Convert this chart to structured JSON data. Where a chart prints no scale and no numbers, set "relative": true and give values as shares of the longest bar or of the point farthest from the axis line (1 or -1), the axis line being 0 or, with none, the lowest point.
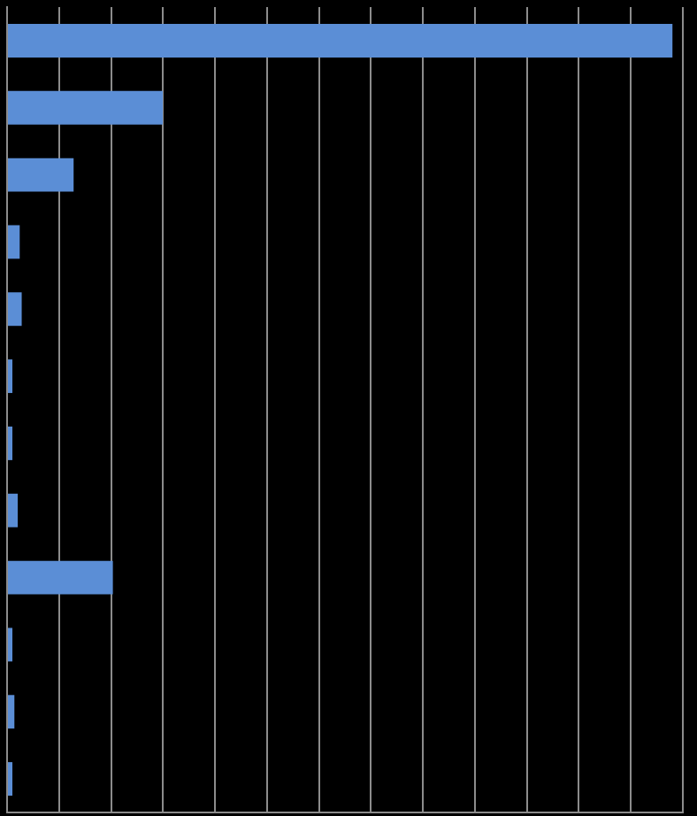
{
  "chart_data": {
    "type": "bar",
    "orientation": "horizontal",
    "relative": true,
    "grid": "x",
    "legend": false,
    "categories": [
      null,
      null,
      null,
      null,
      null,
      null,
      null,
      null,
      null,
      null,
      null,
      null
    ],
    "values": [
      1,
      0.234,
      0.1,
      0.019,
      0.022,
      0.008,
      0.008,
      0.016,
      0.159,
      0.008,
      0.011,
      0.008
    ],
    "color": "#5b8ed6"
  }
}
